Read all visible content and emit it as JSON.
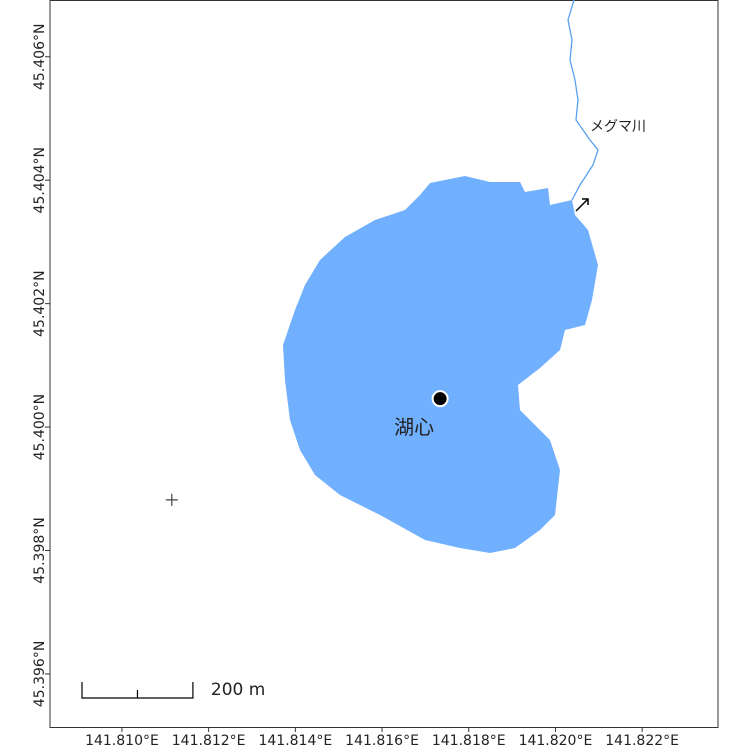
{
  "chart_data": {
    "type": "map",
    "xlim": [
      141.80834,
      141.82375
    ],
    "ylim": [
      45.39514,
      45.40692
    ],
    "xticks": [
      {
        "value": 141.81,
        "label": "141.810°E"
      },
      {
        "value": 141.812,
        "label": "141.812°E"
      },
      {
        "value": 141.814,
        "label": "141.814°E"
      },
      {
        "value": 141.816,
        "label": "141.816°E"
      },
      {
        "value": 141.818,
        "label": "141.818°E"
      },
      {
        "value": 141.82,
        "label": "141.820°E"
      },
      {
        "value": 141.822,
        "label": "141.822°E"
      }
    ],
    "yticks": [
      {
        "value": 45.396,
        "label": "45.396°N"
      },
      {
        "value": 45.398,
        "label": "45.398°N"
      },
      {
        "value": 45.4,
        "label": "45.400°N"
      },
      {
        "value": 45.402,
        "label": "45.402°N"
      },
      {
        "value": 45.404,
        "label": "45.404°N"
      },
      {
        "value": 45.406,
        "label": "45.406°N"
      }
    ],
    "points": [
      {
        "name": "湖心",
        "lon": 141.81734,
        "lat": 45.40046,
        "marker": "dot"
      },
      {
        "lon": 141.81115,
        "lat": 45.39882,
        "marker": "plus"
      }
    ],
    "river_label": "メグマ川",
    "scale_bar": {
      "length": 200,
      "label": "200 m"
    }
  }
}
